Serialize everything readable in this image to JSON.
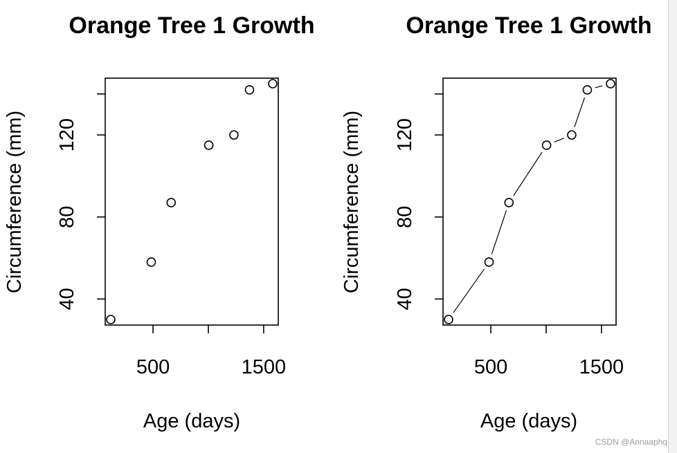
{
  "chart_data": [
    {
      "type": "scatter",
      "title": "Orange Tree 1 Growth",
      "xlabel": "Age (days)",
      "ylabel": "Circumference (mm)",
      "xlim": [
        118,
        1582
      ],
      "ylim": [
        30,
        145
      ],
      "xticks": [
        {
          "value": 500,
          "label": "500"
        },
        {
          "value": 1000,
          "label": ""
        },
        {
          "value": 1500,
          "label": "1500"
        }
      ],
      "yticks": [
        {
          "value": 40,
          "label": "40"
        },
        {
          "value": 80,
          "label": "80"
        },
        {
          "value": 120,
          "label": "120"
        },
        {
          "value": 140,
          "label": ""
        }
      ],
      "x": [
        118,
        484,
        664,
        1004,
        1231,
        1372,
        1582
      ],
      "y": [
        30,
        58,
        87,
        115,
        120,
        142,
        145
      ],
      "plot_type": "p"
    },
    {
      "type": "line",
      "title": "Orange Tree 1 Growth",
      "xlabel": "Age (days)",
      "ylabel": "Circumference (mm)",
      "xlim": [
        118,
        1582
      ],
      "ylim": [
        30,
        145
      ],
      "xticks": [
        {
          "value": 500,
          "label": "500"
        },
        {
          "value": 1000,
          "label": ""
        },
        {
          "value": 1500,
          "label": "1500"
        }
      ],
      "yticks": [
        {
          "value": 40,
          "label": "40"
        },
        {
          "value": 80,
          "label": "80"
        },
        {
          "value": 120,
          "label": "120"
        },
        {
          "value": 140,
          "label": ""
        }
      ],
      "x": [
        118,
        484,
        664,
        1004,
        1231,
        1372,
        1582
      ],
      "y": [
        30,
        58,
        87,
        115,
        120,
        142,
        145
      ],
      "plot_type": "b"
    }
  ],
  "watermark": "CSDN @Annaaphq"
}
